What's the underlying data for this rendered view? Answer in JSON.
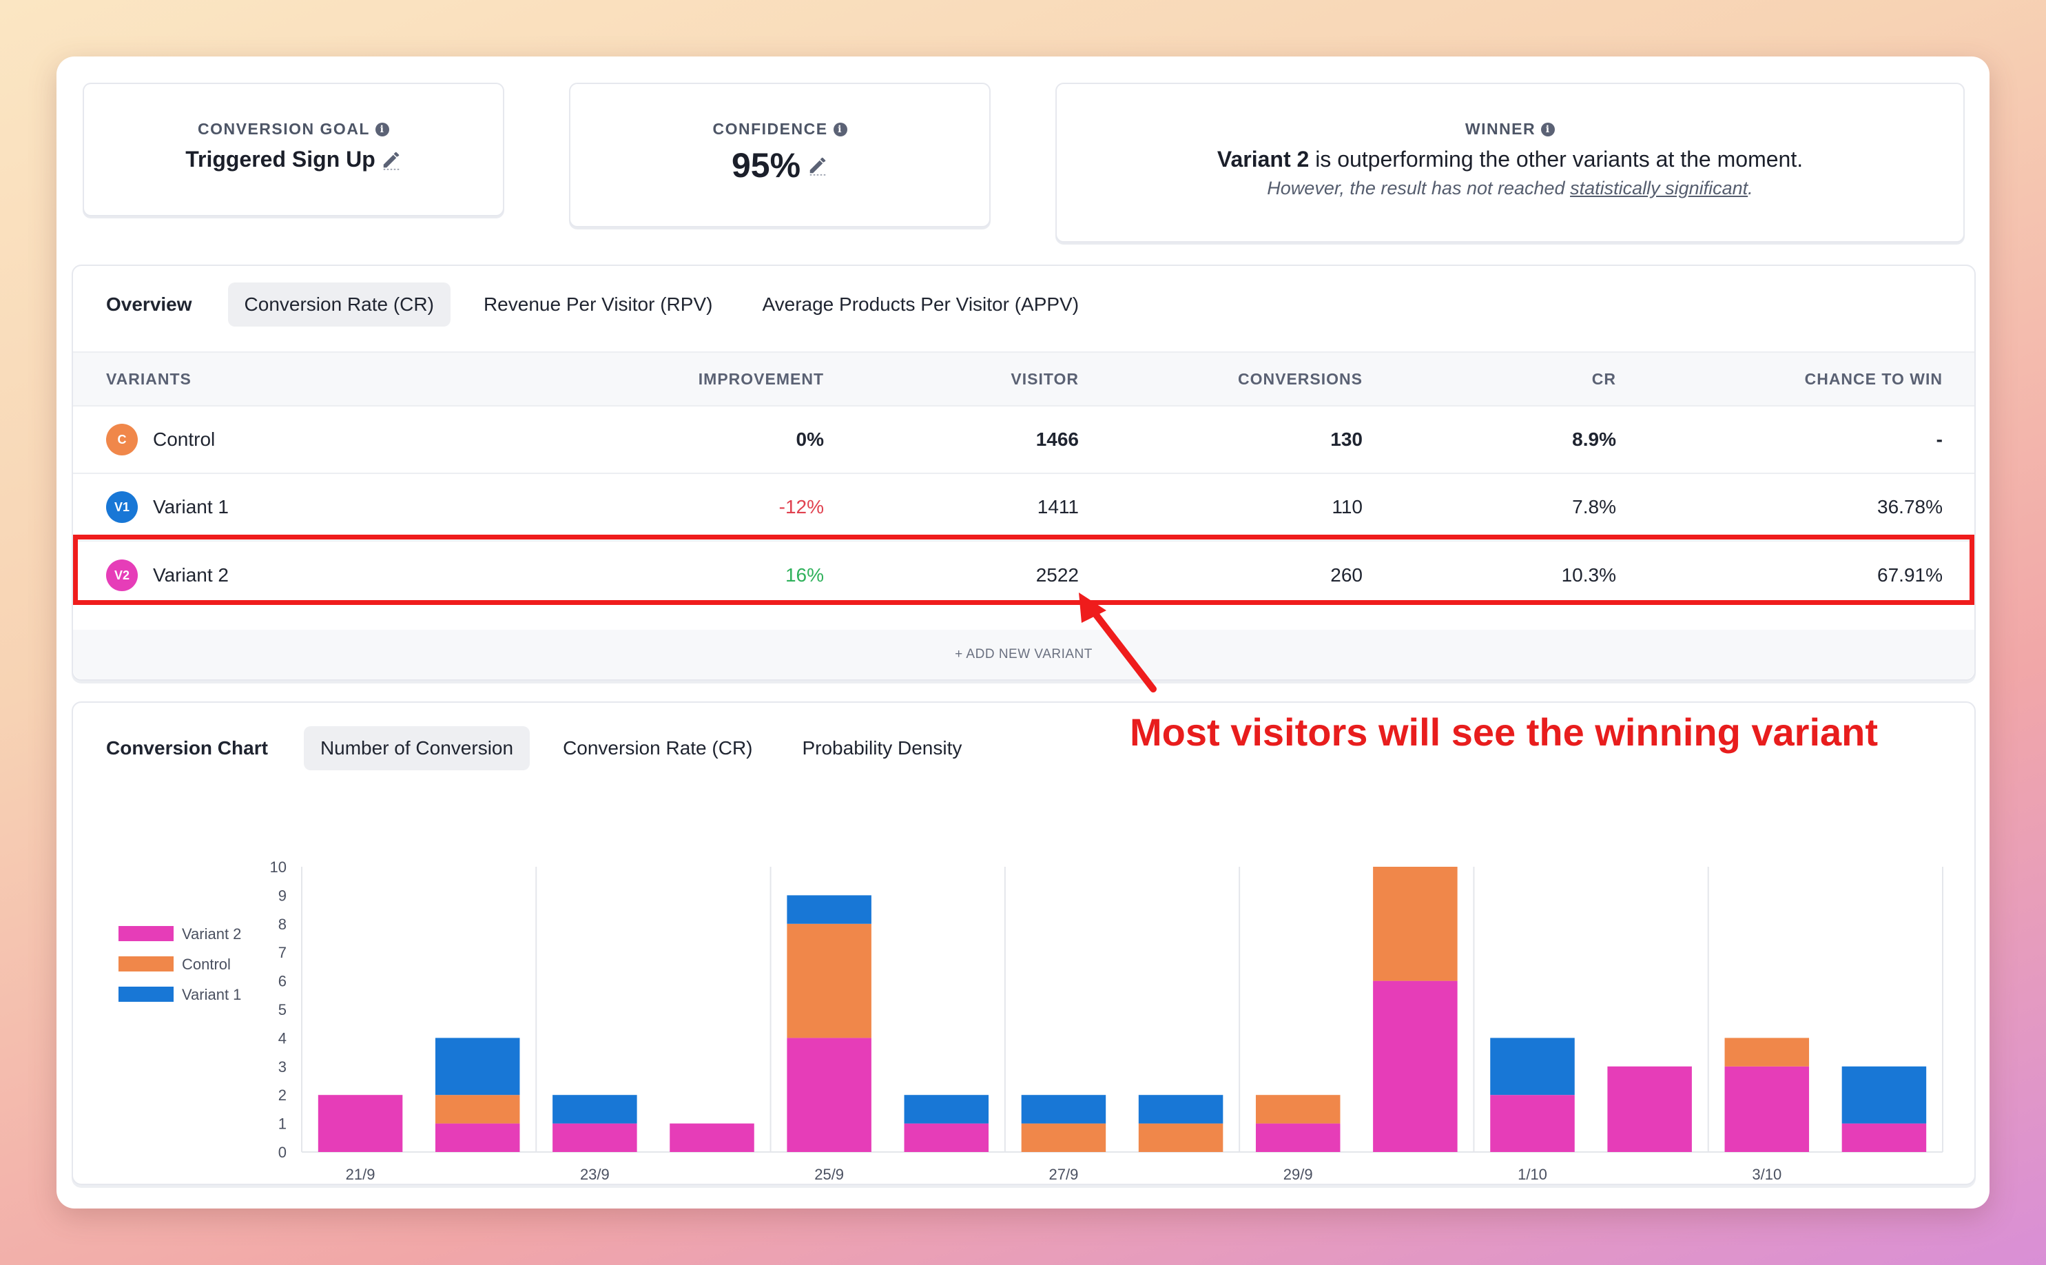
{
  "cards": {
    "goal": {
      "label": "CONVERSION GOAL",
      "value": "Triggered Sign Up"
    },
    "confidence": {
      "label": "CONFIDENCE",
      "value": "95%"
    },
    "winner": {
      "label": "WINNER",
      "variant": "Variant 2",
      "text": " is outperforming the other variants at the moment.",
      "sub_prefix": "However, the result has not reached ",
      "sub_link": "statistically significant",
      "sub_suffix": "."
    }
  },
  "metric_tabs": [
    "Overview",
    "Conversion Rate (CR)",
    "Revenue Per Visitor (RPV)",
    "Average Products Per Visitor (APPV)"
  ],
  "table": {
    "headers": [
      "VARIANTS",
      "IMPROVEMENT",
      "VISITOR",
      "CONVERSIONS",
      "CR",
      "CHANCE TO WIN"
    ],
    "rows": [
      {
        "badge": "C",
        "name": "Control",
        "improvement": "0%",
        "visitor": "1466",
        "conversions": "130",
        "cr": "8.9%",
        "chance": "-"
      },
      {
        "badge": "V1",
        "name": "Variant 1",
        "improvement": "-12%",
        "visitor": "1411",
        "conversions": "110",
        "cr": "7.8%",
        "chance": "36.78%"
      },
      {
        "badge": "V2",
        "name": "Variant 2",
        "improvement": "16%",
        "visitor": "2522",
        "conversions": "260",
        "cr": "10.3%",
        "chance": "67.91%"
      }
    ],
    "add_variant": "+ ADD NEW VARIANT"
  },
  "annotation": "Most visitors will see the winning variant",
  "chart_tabs": {
    "title": "Conversion Chart",
    "items": [
      "Number of Conversion",
      "Conversion Rate (CR)",
      "Probability Density"
    ]
  },
  "colors": {
    "variant2": "#e63db8",
    "control": "#f0874a",
    "variant1": "#1877d6",
    "highlight": "#ef1c1c"
  },
  "chart_data": {
    "type": "bar",
    "stacked": true,
    "categories": [
      "21/9",
      "22/9",
      "23/9",
      "24/9",
      "25/9",
      "26/9",
      "27/9",
      "28/9",
      "29/9",
      "30/9",
      "1/10",
      "2/10",
      "3/10",
      "4/10"
    ],
    "tick_labels": [
      "21/9",
      "",
      "23/9",
      "",
      "25/9",
      "",
      "27/9",
      "",
      "29/9",
      "",
      "1/10",
      "",
      "3/10",
      ""
    ],
    "series": [
      {
        "name": "Variant 2",
        "values": [
          2,
          1,
          1,
          1,
          4,
          1,
          0,
          0,
          1,
          6,
          2,
          3,
          3,
          1
        ]
      },
      {
        "name": "Control",
        "values": [
          0,
          1,
          0,
          0,
          4,
          0,
          1,
          1,
          1,
          4,
          0,
          0,
          1,
          0
        ]
      },
      {
        "name": "Variant 1",
        "values": [
          0,
          2,
          1,
          0,
          1,
          1,
          1,
          1,
          0,
          0,
          2,
          0,
          0,
          2
        ]
      }
    ],
    "ylim": [
      0,
      10
    ],
    "yticks": [
      0,
      1,
      2,
      3,
      4,
      5,
      6,
      7,
      8,
      9,
      10
    ],
    "legend_position": "left",
    "grid": "vertical"
  }
}
